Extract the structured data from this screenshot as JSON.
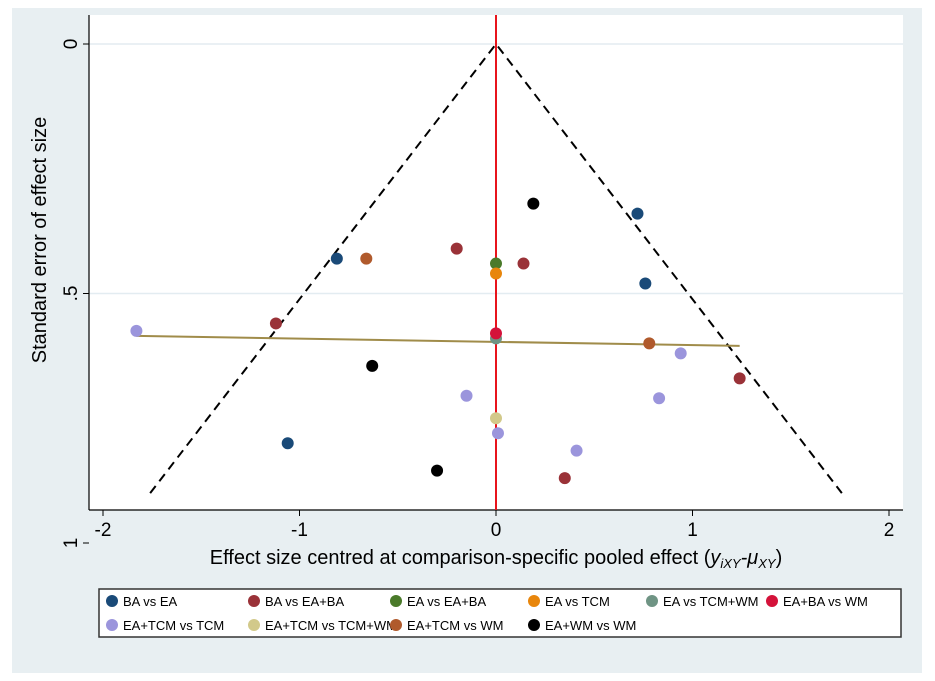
{
  "chart_data": {
    "type": "scatter",
    "title": "",
    "xlabel": "Effect size centred at comparison-specific pooled effect (",
    "xlabel_math": "y",
    "xlabel_sub1": "iXY",
    "xlabel_mid": "-μ",
    "xlabel_sub2": "XY",
    "xlabel_end": ")",
    "ylabel": "Standard error of effect size",
    "xlim": [
      -2.03,
      2.08
    ],
    "ylim": [
      0,
      0.94
    ],
    "y_reversed": true,
    "x_ticks": [
      {
        "v": -2,
        "label": "-2"
      },
      {
        "v": -1,
        "label": "-1"
      },
      {
        "v": 0,
        "label": "0"
      },
      {
        "v": 1,
        "label": "1"
      },
      {
        "v": 2,
        "label": "2"
      }
    ],
    "y_ticks": [
      {
        "v": 0,
        "label": "0"
      },
      {
        "v": 0.5,
        "label": ".5"
      },
      {
        "v": 1,
        "label": "1"
      }
    ],
    "gridlines_y": [
      0,
      0.5
    ],
    "reference_line_x": 0,
    "funnel": {
      "apex": [
        0,
        0
      ],
      "left_end": [
        -1.76,
        0.9
      ],
      "right_end": [
        1.76,
        0.9
      ]
    },
    "regression_line": {
      "from": [
        -1.83,
        0.585
      ],
      "to": [
        1.24,
        0.605
      ],
      "color": "#a08c4a"
    },
    "legend_position": "bottom",
    "series": [
      {
        "name": "BA vs EA",
        "color": "#1a4a78",
        "points": [
          [
            -0.81,
            0.43
          ],
          [
            0.72,
            0.34
          ],
          [
            0.76,
            0.48
          ],
          [
            -1.06,
            0.8
          ]
        ]
      },
      {
        "name": "BA vs EA+BA",
        "color": "#9a3238",
        "points": [
          [
            -0.2,
            0.41
          ],
          [
            0.14,
            0.44
          ],
          [
            -1.12,
            0.56
          ],
          [
            1.24,
            0.67
          ],
          [
            0.35,
            0.87
          ]
        ]
      },
      {
        "name": "EA vs EA+BA",
        "color": "#4a7a2a",
        "points": [
          [
            0,
            0.44
          ]
        ]
      },
      {
        "name": "EA vs TCM",
        "color": "#e8860c",
        "points": [
          [
            0,
            0.46
          ]
        ]
      },
      {
        "name": "EA vs TCM+WM",
        "color": "#6f9484",
        "points": [
          [
            0,
            0.59
          ]
        ]
      },
      {
        "name": "EA+BA vs WM",
        "color": "#d4123a",
        "points": [
          [
            0,
            0.58
          ]
        ]
      },
      {
        "name": "EA+TCM vs TCM",
        "color": "#9b95dc",
        "points": [
          [
            -1.83,
            0.575
          ],
          [
            0.94,
            0.62
          ],
          [
            -0.15,
            0.705
          ],
          [
            0.83,
            0.71
          ],
          [
            0.01,
            0.78
          ],
          [
            0.41,
            0.815
          ]
        ]
      },
      {
        "name": "EA+TCM vs TCM+WM",
        "color": "#d2c98a",
        "points": [
          [
            0,
            0.75
          ]
        ]
      },
      {
        "name": "EA+TCM vs WM",
        "color": "#b05a2c",
        "points": [
          [
            -0.66,
            0.43
          ],
          [
            0.78,
            0.6
          ]
        ]
      },
      {
        "name": "EA+WM vs WM",
        "color": "#000000",
        "points": [
          [
            0.19,
            0.32
          ],
          [
            -0.63,
            0.645
          ],
          [
            -0.3,
            0.855
          ]
        ]
      }
    ]
  }
}
